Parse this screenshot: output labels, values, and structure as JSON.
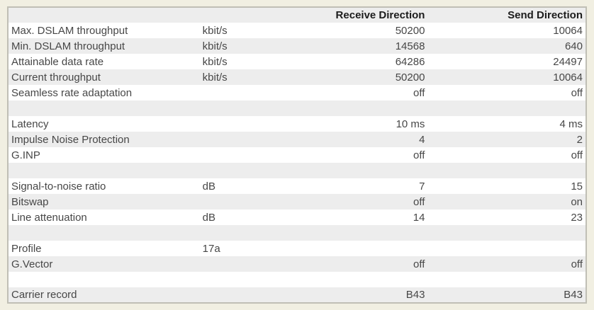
{
  "page": {
    "background_color": "#f1efe2",
    "stripe_color": "#ededed",
    "row_color": "#ffffff",
    "border_color": "#c0bfb5",
    "text_color": "#474747",
    "header_text_color": "#1c1c1c"
  },
  "table": {
    "header": {
      "label": "",
      "unit": "",
      "receive": "Receive Direction",
      "send": "Send Direction"
    },
    "rows": [
      {
        "label": "Max. DSLAM throughput",
        "unit": "kbit/s",
        "receive": "50200",
        "send": "10064"
      },
      {
        "label": "Min. DSLAM throughput",
        "unit": "kbit/s",
        "receive": "14568",
        "send": "640"
      },
      {
        "label": "Attainable data rate",
        "unit": "kbit/s",
        "receive": "64286",
        "send": "24497"
      },
      {
        "label": "Current throughput",
        "unit": "kbit/s",
        "receive": "50200",
        "send": "10064"
      },
      {
        "label": "Seamless rate adaptation",
        "unit": "",
        "receive": "off",
        "send": "off"
      },
      {
        "label": "",
        "unit": "",
        "receive": "",
        "send": "",
        "spacer": true
      },
      {
        "label": "Latency",
        "unit": "",
        "receive": "10 ms",
        "send": "4 ms"
      },
      {
        "label": "Impulse Noise Protection",
        "unit": "",
        "receive": "4",
        "send": "2"
      },
      {
        "label": "G.INP",
        "unit": "",
        "receive": "off",
        "send": "off"
      },
      {
        "label": "",
        "unit": "",
        "receive": "",
        "send": "",
        "spacer": true
      },
      {
        "label": "Signal-to-noise ratio",
        "unit": "dB",
        "receive": "7",
        "send": "15"
      },
      {
        "label": "Bitswap",
        "unit": "",
        "receive": "off",
        "send": "on"
      },
      {
        "label": "Line attenuation",
        "unit": "dB",
        "receive": "14",
        "send": "23"
      },
      {
        "label": "",
        "unit": "",
        "receive": "",
        "send": "",
        "spacer": true
      },
      {
        "label": "Profile",
        "unit": "17a",
        "receive": "",
        "send": ""
      },
      {
        "label": "G.Vector",
        "unit": "",
        "receive": "off",
        "send": "off"
      },
      {
        "label": "",
        "unit": "",
        "receive": "",
        "send": "",
        "spacer": true
      },
      {
        "label": "Carrier record",
        "unit": "",
        "receive": "B43",
        "send": "B43"
      }
    ]
  }
}
